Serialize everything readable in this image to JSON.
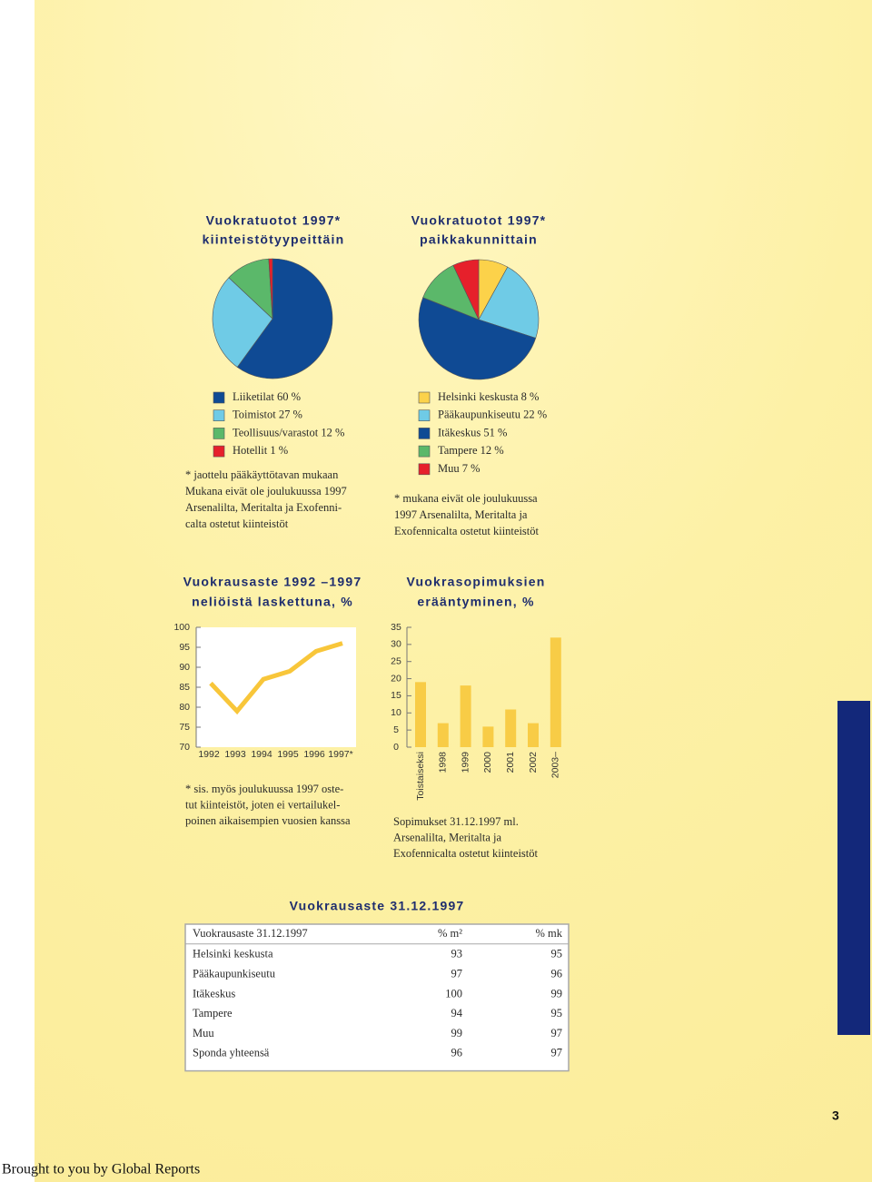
{
  "chart_data": [
    {
      "type": "pie",
      "title": [
        "Vuokratuotot 1997*",
        "kiinteistötyypeittäin"
      ],
      "categories": [
        "Liiketilat",
        "Toimistot",
        "Teollisuus/varastot",
        "Hotellit"
      ],
      "values": [
        60,
        27,
        12,
        1
      ],
      "value_labels": [
        "60 %",
        "27 %",
        "12 %",
        "1 %"
      ],
      "colors": [
        "#0f4a94",
        "#6fcbe6",
        "#5bb86a",
        "#e6202b"
      ],
      "notes": [
        "* jaottelu pääkäyttötavan mukaan",
        "Mukana eivät ole joulukuussa 1997",
        "Arsenalilta, Meritalta ja Exofenni-",
        "calta ostetut kiinteistöt"
      ]
    },
    {
      "type": "pie",
      "title": [
        "Vuokratuotot 1997*",
        "paikkakunnittain"
      ],
      "categories": [
        "Helsinki keskusta",
        "Pääkaupunkiseutu",
        "Itäkeskus",
        "Tampere",
        "Muu"
      ],
      "values": [
        8,
        22,
        51,
        12,
        7
      ],
      "value_labels": [
        "8 %",
        "22 %",
        "51 %",
        "12 %",
        "7 %"
      ],
      "colors": [
        "#fcd24a",
        "#6fcbe6",
        "#0f4a94",
        "#5bb86a",
        "#e6202b"
      ],
      "notes": [
        "* mukana eivät ole joulukuussa",
        "1997 Arsenalilta, Meritalta ja",
        "Exofennicalta ostetut kiinteistöt"
      ]
    },
    {
      "type": "line",
      "title": [
        "Vuokrausaste 1992 –1997",
        "neliöistä laskettuna, %"
      ],
      "categories": [
        "1992",
        "1993",
        "1994",
        "1995",
        "1996",
        "1997*"
      ],
      "values": [
        86,
        79,
        87,
        89,
        94,
        96
      ],
      "color": "#f8c63a",
      "ylim": [
        70,
        100
      ],
      "yticks": [
        70,
        75,
        80,
        85,
        90,
        95,
        100
      ],
      "notes": [
        "* sis. myös joulukuussa 1997 oste-",
        "tut kiinteistöt, joten ei vertailukel-",
        "poinen aikaisempien vuosien kanssa"
      ]
    },
    {
      "type": "bar",
      "title": [
        "Vuokrasopimuksien",
        "erääntyminen, %"
      ],
      "categories": [
        "Toistaiseksi",
        "1998",
        "1999",
        "2000",
        "2001",
        "2002",
        "2003–"
      ],
      "values": [
        19,
        7,
        18,
        6,
        11,
        7,
        32
      ],
      "color": "#f8cc46",
      "ylim": [
        0,
        35
      ],
      "yticks": [
        0,
        5,
        10,
        15,
        20,
        25,
        30,
        35
      ],
      "notes": [
        "Sopimukset 31.12.1997 ml.",
        "Arsenalilta, Meritalta ja",
        "Exofennicalta ostetut kiinteistöt"
      ]
    }
  ],
  "table": {
    "title": "Vuokrausaste 31.12.1997",
    "header": [
      "Vuokrausaste 31.12.1997",
      "% m²",
      "% mk"
    ],
    "rows": [
      [
        "Helsinki keskusta",
        93,
        95
      ],
      [
        "Pääkaupunkiseutu",
        97,
        96
      ],
      [
        "Itäkeskus",
        100,
        99
      ],
      [
        "Tampere",
        94,
        95
      ],
      [
        "Muu",
        99,
        97
      ],
      [
        "Sponda yhteensä",
        96,
        97
      ]
    ]
  },
  "page_number": "3",
  "footer": "Brought to you by Global Reports"
}
